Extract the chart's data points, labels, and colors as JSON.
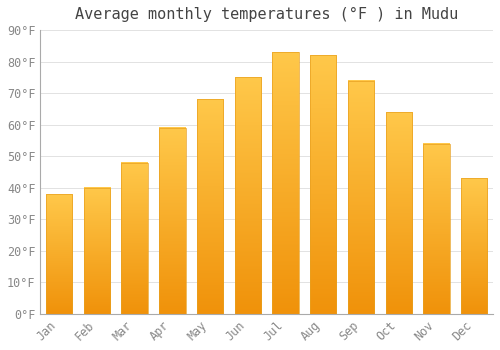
{
  "title": "Average monthly temperatures (°F ) in Mudu",
  "months": [
    "Jan",
    "Feb",
    "Mar",
    "Apr",
    "May",
    "Jun",
    "Jul",
    "Aug",
    "Sep",
    "Oct",
    "Nov",
    "Dec"
  ],
  "values": [
    38,
    40,
    48,
    59,
    68,
    75,
    83,
    82,
    74,
    64,
    54,
    43
  ],
  "bar_color_top": "#FFC84A",
  "bar_color_bottom": "#F0920A",
  "bar_edge_color": "#E8A020",
  "background_color": "#FFFFFF",
  "plot_bg_color": "#FFFFFF",
  "grid_color": "#DDDDDD",
  "title_fontsize": 11,
  "tick_fontsize": 8.5,
  "label_color": "#888888",
  "spine_color": "#AAAAAA",
  "ylim": [
    0,
    90
  ],
  "yticks": [
    0,
    10,
    20,
    30,
    40,
    50,
    60,
    70,
    80,
    90
  ]
}
